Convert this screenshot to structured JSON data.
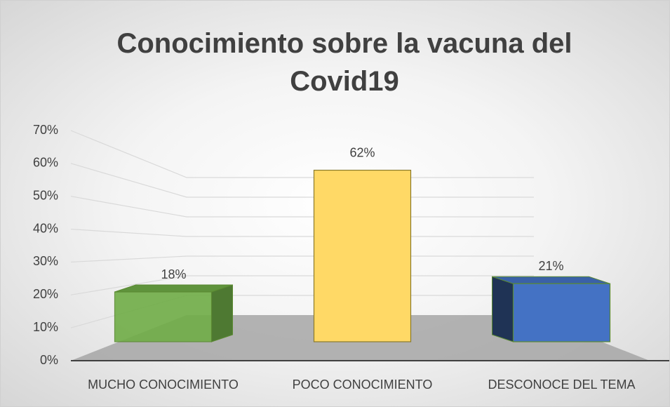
{
  "chart_data": {
    "type": "bar3d",
    "title": "Conocimiento sobre la vacuna del Covid19",
    "categories": [
      "MUCHO CONOCIMIENTO",
      "POCO CONOCIMIENTO",
      "DESCONOCE DEL TEMA"
    ],
    "values": [
      18,
      62,
      21
    ],
    "value_labels": [
      "18%",
      "62%",
      "21%"
    ],
    "colors": [
      "#70ad47",
      "#ffd966",
      "#4472c4"
    ],
    "ylim": [
      0,
      70
    ],
    "yticks": [
      {
        "value": 0,
        "label": "0%"
      },
      {
        "value": 10,
        "label": "10%"
      },
      {
        "value": 20,
        "label": "20%"
      },
      {
        "value": 30,
        "label": "30%"
      },
      {
        "value": 40,
        "label": "40%"
      },
      {
        "value": 50,
        "label": "50%"
      },
      {
        "value": 60,
        "label": "60%"
      },
      {
        "value": 70,
        "label": "70%"
      }
    ],
    "grid": true
  }
}
